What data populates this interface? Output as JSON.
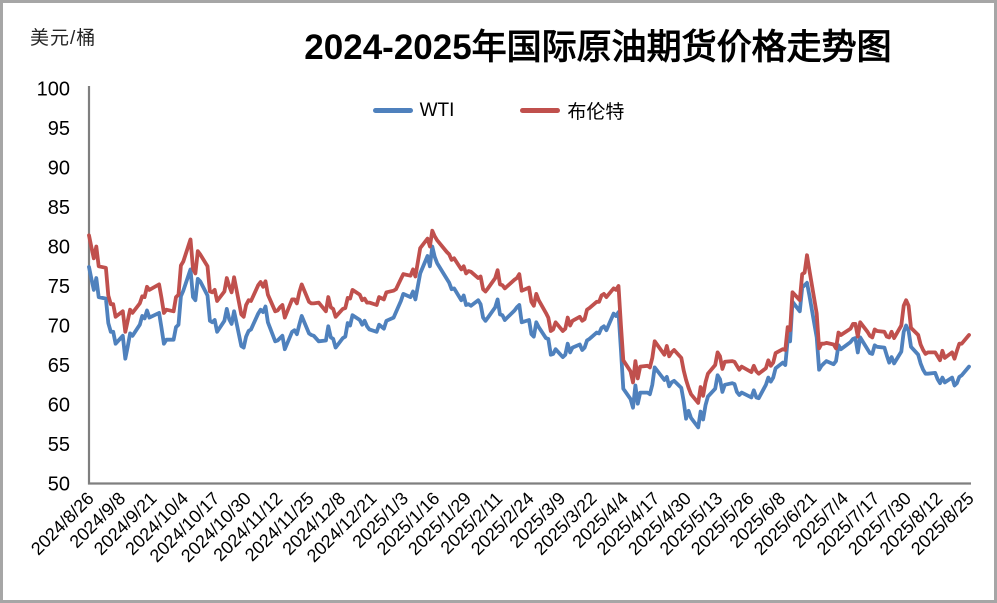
{
  "chart": {
    "title": "2024-2025年国际原油期货价格走势图",
    "unit": "美元/桶"
  },
  "chart_data": {
    "type": "line",
    "title": "2024-2025年国际原油期货价格走势图",
    "ylabel": "美元/桶",
    "xlabel": "",
    "ylim": [
      50,
      100
    ],
    "y_tick_step": 5,
    "y_tick_labels": [
      "100",
      "95",
      "90",
      "85",
      "80",
      "75",
      "70",
      "65",
      "60",
      "55",
      "50"
    ],
    "grid": false,
    "legend_position": "top-center",
    "axis_color": "#7f7f7f",
    "x_tick_labels": [
      "2024/8/26",
      "2024/9/8",
      "2024/9/21",
      "2024/10/4",
      "2024/10/17",
      "2024/10/30",
      "2024/11/12",
      "2024/11/25",
      "2024/12/8",
      "2024/12/21",
      "2025/1/3",
      "2025/1/16",
      "2025/1/29",
      "2025/2/11",
      "2025/2/24",
      "2025/3/9",
      "2025/3/22",
      "2025/4/4",
      "2025/4/17",
      "2025/4/30",
      "2025/5/13",
      "2025/5/26",
      "2025/6/8",
      "2025/6/21",
      "2025/7/4",
      "2025/7/17",
      "2025/7/30",
      "2025/8/12",
      "2025/8/25"
    ],
    "dates": [
      "2024-08-26",
      "2024-08-27",
      "2024-08-28",
      "2024-08-29",
      "2024-08-30",
      "2024-09-02",
      "2024-09-03",
      "2024-09-04",
      "2024-09-05",
      "2024-09-06",
      "2024-09-09",
      "2024-09-10",
      "2024-09-11",
      "2024-09-12",
      "2024-09-13",
      "2024-09-16",
      "2024-09-17",
      "2024-09-18",
      "2024-09-19",
      "2024-09-20",
      "2024-09-24",
      "2024-09-25",
      "2024-09-26",
      "2024-09-27",
      "2024-09-30",
      "2024-10-01",
      "2024-10-02",
      "2024-10-03",
      "2024-10-04",
      "2024-10-07",
      "2024-10-08",
      "2024-10-09",
      "2024-10-10",
      "2024-10-11",
      "2024-10-14",
      "2024-10-15",
      "2024-10-16",
      "2024-10-17",
      "2024-10-18",
      "2024-10-21",
      "2024-10-22",
      "2024-10-23",
      "2024-10-24",
      "2024-10-25",
      "2024-10-28",
      "2024-10-29",
      "2024-10-30",
      "2024-10-31",
      "2024-11-01",
      "2024-11-04",
      "2024-11-05",
      "2024-11-06",
      "2024-11-07",
      "2024-11-08",
      "2024-11-11",
      "2024-11-12",
      "2024-11-13",
      "2024-11-14",
      "2024-11-15",
      "2024-11-18",
      "2024-11-19",
      "2024-11-20",
      "2024-11-21",
      "2024-11-22",
      "2024-11-25",
      "2024-11-26",
      "2024-11-27",
      "2024-11-29",
      "2024-12-02",
      "2024-12-03",
      "2024-12-04",
      "2024-12-05",
      "2024-12-06",
      "2024-12-09",
      "2024-12-10",
      "2024-12-11",
      "2024-12-12",
      "2024-12-13",
      "2024-12-16",
      "2024-12-17",
      "2024-12-18",
      "2024-12-19",
      "2024-12-20",
      "2024-12-23",
      "2024-12-24",
      "2024-12-26",
      "2024-12-27",
      "2024-12-30",
      "2024-12-31",
      "2025-01-02",
      "2025-01-03",
      "2025-01-06",
      "2025-01-07",
      "2025-01-08",
      "2025-01-10",
      "2025-01-13",
      "2025-01-14",
      "2025-01-15",
      "2025-01-16",
      "2025-01-17",
      "2025-01-21",
      "2025-01-22",
      "2025-01-23",
      "2025-01-24",
      "2025-01-27",
      "2025-01-28",
      "2025-01-29",
      "2025-01-30",
      "2025-01-31",
      "2025-02-03",
      "2025-02-04",
      "2025-02-05",
      "2025-02-06",
      "2025-02-07",
      "2025-02-10",
      "2025-02-11",
      "2025-02-12",
      "2025-02-13",
      "2025-02-14",
      "2025-02-18",
      "2025-02-19",
      "2025-02-20",
      "2025-02-21",
      "2025-02-24",
      "2025-02-25",
      "2025-02-26",
      "2025-02-27",
      "2025-02-28",
      "2025-03-03",
      "2025-03-04",
      "2025-03-05",
      "2025-03-06",
      "2025-03-07",
      "2025-03-10",
      "2025-03-11",
      "2025-03-12",
      "2025-03-13",
      "2025-03-14",
      "2025-03-17",
      "2025-03-18",
      "2025-03-19",
      "2025-03-20",
      "2025-03-21",
      "2025-03-24",
      "2025-03-25",
      "2025-03-26",
      "2025-03-27",
      "2025-03-28",
      "2025-03-31",
      "2025-04-01",
      "2025-04-02",
      "2025-04-03",
      "2025-04-04",
      "2025-04-07",
      "2025-04-08",
      "2025-04-09",
      "2025-04-10",
      "2025-04-11",
      "2025-04-14",
      "2025-04-15",
      "2025-04-16",
      "2025-04-17",
      "2025-04-21",
      "2025-04-22",
      "2025-04-23",
      "2025-04-24",
      "2025-04-25",
      "2025-04-28",
      "2025-04-29",
      "2025-04-30",
      "2025-05-01",
      "2025-05-02",
      "2025-05-05",
      "2025-05-06",
      "2025-05-07",
      "2025-05-08",
      "2025-05-09",
      "2025-05-12",
      "2025-05-13",
      "2025-05-14",
      "2025-05-15",
      "2025-05-16",
      "2025-05-19",
      "2025-05-20",
      "2025-05-21",
      "2025-05-22",
      "2025-05-23",
      "2025-05-27",
      "2025-05-28",
      "2025-05-29",
      "2025-05-30",
      "2025-06-02",
      "2025-06-03",
      "2025-06-04",
      "2025-06-05",
      "2025-06-06",
      "2025-06-09",
      "2025-06-10",
      "2025-06-11",
      "2025-06-12",
      "2025-06-13",
      "2025-06-16",
      "2025-06-17",
      "2025-06-18",
      "2025-06-19",
      "2025-06-20",
      "2025-06-23",
      "2025-06-24",
      "2025-06-25",
      "2025-06-26",
      "2025-06-27",
      "2025-06-30",
      "2025-07-01",
      "2025-07-02",
      "2025-07-03",
      "2025-07-07",
      "2025-07-08",
      "2025-07-09",
      "2025-07-10",
      "2025-07-11",
      "2025-07-14",
      "2025-07-15",
      "2025-07-16",
      "2025-07-17",
      "2025-07-18",
      "2025-07-21",
      "2025-07-22",
      "2025-07-23",
      "2025-07-24",
      "2025-07-25",
      "2025-07-28",
      "2025-07-29",
      "2025-07-30",
      "2025-07-31",
      "2025-08-01",
      "2025-08-04",
      "2025-08-05",
      "2025-08-06",
      "2025-08-07",
      "2025-08-08",
      "2025-08-11",
      "2025-08-12",
      "2025-08-13",
      "2025-08-14",
      "2025-08-15",
      "2025-08-18",
      "2025-08-19",
      "2025-08-20",
      "2025-08-21",
      "2025-08-22",
      "2025-08-25"
    ],
    "series": [
      {
        "name": "WTI",
        "color": "#4F81BD",
        "values": [
          77.4,
          75.9,
          74.5,
          76.0,
          73.6,
          73.4,
          70.3,
          69.2,
          69.2,
          67.7,
          68.7,
          65.8,
          67.3,
          69.0,
          68.7,
          70.1,
          71.2,
          70.9,
          71.9,
          71.0,
          71.6,
          69.7,
          67.7,
          68.2,
          68.2,
          69.8,
          70.1,
          73.7,
          74.4,
          77.1,
          73.6,
          73.2,
          75.9,
          75.6,
          73.8,
          70.6,
          70.4,
          70.7,
          69.2,
          70.6,
          72.1,
          70.8,
          70.2,
          71.8,
          67.4,
          67.2,
          68.6,
          69.3,
          69.5,
          71.5,
          72.0,
          71.7,
          72.4,
          70.4,
          68.0,
          68.1,
          68.4,
          68.7,
          67.0,
          69.2,
          69.4,
          68.9,
          70.1,
          71.2,
          69.0,
          68.8,
          68.7,
          68.0,
          68.1,
          69.9,
          68.5,
          68.3,
          67.2,
          68.4,
          68.6,
          70.3,
          70.0,
          71.3,
          70.7,
          70.1,
          70.6,
          69.9,
          69.5,
          69.2,
          70.1,
          69.6,
          70.6,
          71.0,
          71.7,
          73.1,
          74.0,
          73.6,
          74.3,
          73.3,
          76.6,
          78.8,
          77.5,
          80.0,
          78.7,
          77.9,
          75.9,
          75.4,
          74.6,
          74.7,
          73.2,
          73.8,
          72.6,
          72.7,
          72.5,
          73.2,
          72.7,
          71.0,
          70.6,
          71.0,
          72.3,
          73.3,
          71.4,
          71.3,
          70.7,
          71.9,
          72.3,
          72.6,
          70.4,
          70.7,
          68.9,
          68.6,
          70.4,
          69.8,
          68.4,
          68.3,
          66.3,
          66.4,
          67.0,
          66.0,
          66.3,
          67.7,
          66.6,
          67.2,
          67.6,
          66.9,
          67.2,
          68.1,
          68.3,
          69.1,
          69.0,
          69.7,
          69.9,
          69.4,
          71.5,
          71.2,
          71.7,
          67.0,
          62.0,
          60.7,
          59.6,
          62.4,
          60.1,
          61.5,
          61.5,
          61.3,
          62.5,
          64.7,
          63.1,
          63.5,
          62.3,
          62.8,
          63.0,
          62.1,
          60.4,
          58.2,
          59.2,
          58.3,
          57.1,
          59.1,
          58.1,
          59.9,
          61.0,
          62.0,
          63.7,
          63.2,
          61.6,
          62.5,
          62.7,
          62.6,
          61.6,
          61.2,
          61.5,
          60.9,
          61.8,
          60.9,
          60.8,
          62.5,
          63.4,
          62.9,
          63.4,
          64.6,
          65.3,
          65.0,
          68.2,
          68.0,
          73.0,
          71.8,
          74.8,
          75.1,
          75.4,
          73.8,
          68.5,
          64.4,
          64.9,
          65.2,
          65.5,
          65.1,
          65.5,
          67.5,
          67.0,
          67.9,
          68.3,
          68.4,
          66.6,
          68.5,
          67.0,
          66.5,
          66.4,
          67.5,
          67.3,
          67.2,
          66.2,
          65.3,
          66.0,
          65.2,
          66.7,
          69.2,
          70.0,
          69.3,
          67.3,
          66.3,
          65.2,
          64.4,
          63.9,
          63.9,
          64.0,
          63.2,
          62.7,
          63.4,
          62.8,
          63.4,
          62.4,
          62.7,
          63.5,
          63.7,
          64.8
        ]
      },
      {
        "name": "布伦特",
        "color": "#C0504D",
        "values": [
          81.4,
          79.9,
          78.5,
          80.0,
          77.5,
          77.3,
          73.8,
          72.7,
          72.7,
          71.1,
          71.8,
          69.2,
          70.6,
          72.0,
          71.6,
          72.8,
          73.7,
          73.6,
          74.9,
          74.5,
          75.2,
          73.5,
          71.6,
          72.0,
          71.8,
          73.6,
          73.9,
          77.6,
          78.1,
          80.9,
          77.2,
          76.6,
          79.4,
          79.0,
          77.5,
          74.3,
          74.2,
          74.5,
          73.1,
          74.3,
          76.0,
          75.0,
          74.2,
          76.1,
          71.4,
          71.1,
          72.6,
          73.2,
          73.1,
          75.1,
          75.5,
          74.9,
          75.6,
          73.9,
          71.8,
          71.9,
          72.3,
          72.6,
          71.0,
          73.3,
          73.3,
          72.8,
          74.2,
          75.2,
          73.0,
          72.8,
          72.8,
          72.9,
          71.8,
          73.6,
          72.3,
          72.1,
          71.1,
          72.1,
          72.2,
          73.5,
          73.4,
          74.5,
          73.9,
          73.2,
          73.4,
          72.9,
          72.9,
          72.6,
          73.6,
          73.3,
          74.2,
          74.4,
          74.6,
          75.9,
          76.5,
          76.3,
          77.1,
          76.2,
          79.8,
          81.0,
          80.0,
          82.0,
          81.3,
          80.8,
          79.3,
          79.0,
          78.3,
          78.5,
          77.1,
          77.5,
          76.6,
          76.9,
          76.8,
          76.0,
          76.2,
          74.6,
          74.3,
          74.7,
          76.0,
          77.0,
          75.2,
          75.1,
          74.7,
          75.8,
          76.0,
          76.5,
          74.4,
          74.8,
          73.0,
          72.5,
          74.0,
          73.2,
          71.6,
          71.0,
          69.3,
          69.5,
          70.4,
          69.3,
          69.6,
          71.0,
          70.0,
          70.6,
          71.1,
          70.6,
          70.8,
          72.0,
          72.2,
          73.0,
          73.0,
          73.8,
          74.0,
          73.6,
          74.7,
          74.5,
          75.0,
          70.1,
          65.6,
          64.2,
          62.8,
          65.5,
          63.3,
          64.8,
          64.9,
          64.7,
          65.9,
          68.0,
          66.3,
          67.4,
          66.1,
          66.6,
          66.9,
          65.9,
          64.3,
          63.1,
          62.1,
          61.3,
          60.2,
          62.2,
          61.1,
          62.8,
          63.9,
          65.0,
          66.6,
          66.1,
          64.5,
          65.4,
          65.5,
          65.4,
          64.9,
          64.4,
          64.8,
          64.1,
          64.9,
          64.2,
          63.9,
          64.6,
          65.6,
          64.9,
          65.3,
          66.5,
          67.0,
          66.9,
          69.8,
          69.4,
          74.2,
          73.2,
          76.5,
          76.7,
          78.9,
          77.0,
          71.5,
          67.1,
          67.7,
          67.7,
          67.8,
          67.6,
          67.1,
          69.1,
          68.8,
          69.6,
          70.2,
          70.2,
          68.6,
          70.4,
          69.2,
          68.7,
          68.5,
          69.5,
          69.3,
          69.2,
          68.6,
          68.5,
          69.2,
          68.4,
          70.0,
          72.5,
          73.2,
          72.5,
          69.7,
          68.8,
          67.6,
          66.9,
          66.4,
          66.6,
          66.6,
          66.1,
          65.6,
          66.8,
          65.9,
          66.6,
          65.8,
          66.8,
          67.7,
          67.7,
          68.8
        ]
      }
    ]
  }
}
